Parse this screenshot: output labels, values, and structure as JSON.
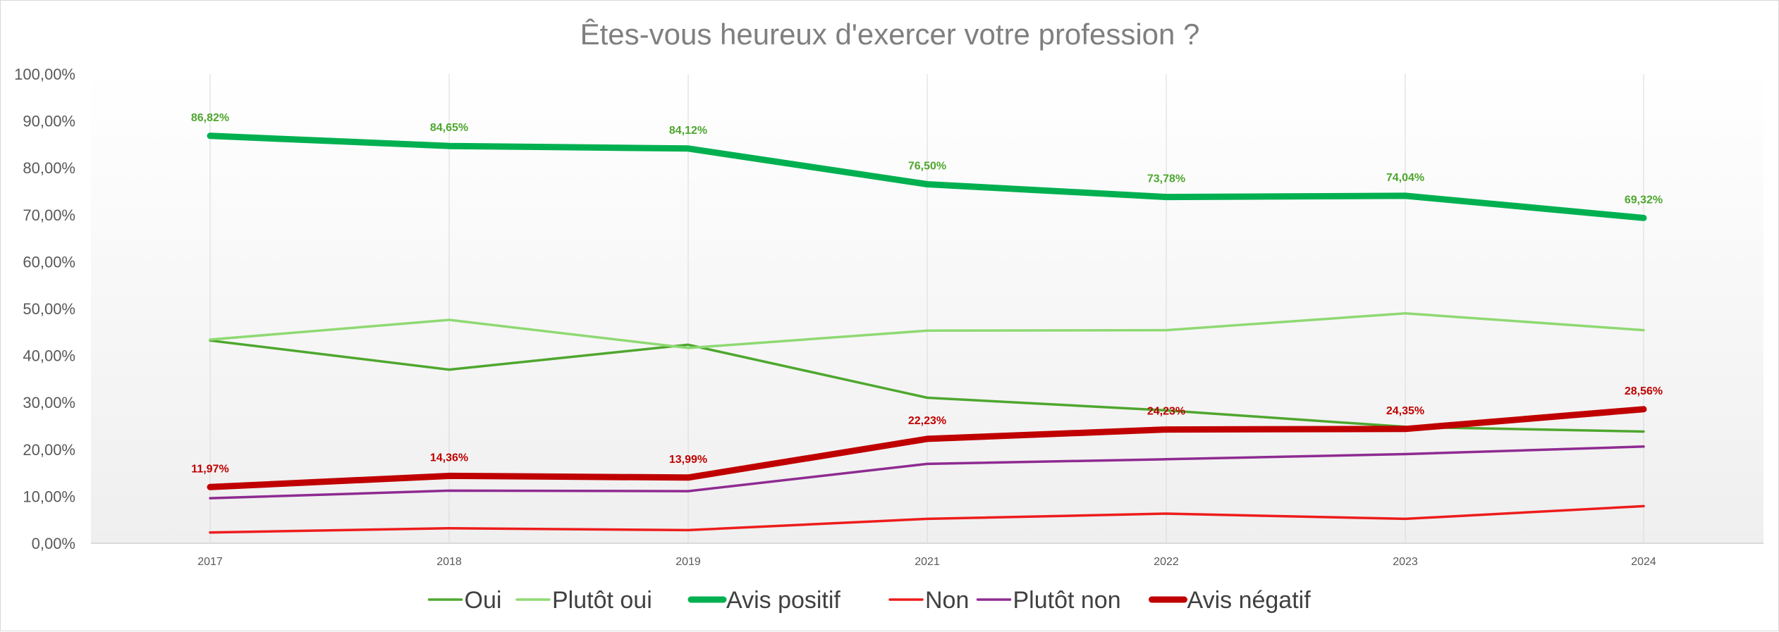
{
  "chart_data": {
    "type": "line",
    "title": "Êtes-vous heureux d'exercer votre profession ?",
    "categories": [
      "2017",
      "2018",
      "2019",
      "2021",
      "2022",
      "2023",
      "2024"
    ],
    "ylim": [
      0,
      100
    ],
    "y_tick_labels": [
      "0,00%",
      "10,00%",
      "20,00%",
      "30,00%",
      "40,00%",
      "50,00%",
      "60,00%",
      "70,00%",
      "80,00%",
      "90,00%",
      "100,00%"
    ],
    "legend_position": "bottom",
    "grid": "vertical",
    "series": [
      {
        "name": "Oui",
        "color": "#4ea72e",
        "weight": "thin",
        "values": [
          43.2,
          37.0,
          42.3,
          31.0,
          28.3,
          24.8,
          23.8
        ]
      },
      {
        "name": "Plutôt oui",
        "color": "#8ed973",
        "weight": "thin",
        "values": [
          43.4,
          47.6,
          41.6,
          45.3,
          45.4,
          49.0,
          45.4
        ]
      },
      {
        "name": "Avis positif",
        "color": "#00b050",
        "weight": "thick",
        "values": [
          86.82,
          84.65,
          84.12,
          76.5,
          73.78,
          74.04,
          69.32
        ],
        "data_labels": [
          "86,82%",
          "84,65%",
          "84,12%",
          "76,50%",
          "73,78%",
          "74,04%",
          "69,32%"
        ]
      },
      {
        "name": "Non",
        "color": "#ee1c1c",
        "weight": "thin",
        "values": [
          2.3,
          3.2,
          2.8,
          5.2,
          6.3,
          5.2,
          7.9
        ]
      },
      {
        "name": "Plutôt non",
        "color": "#8e2b91",
        "weight": "thin",
        "values": [
          9.6,
          11.2,
          11.1,
          16.9,
          17.9,
          19.0,
          20.6
        ]
      },
      {
        "name": "Avis négatif",
        "color": "#c00000",
        "weight": "thick",
        "values": [
          11.97,
          14.36,
          13.99,
          22.23,
          24.23,
          24.35,
          28.56
        ],
        "data_labels": [
          "11,97%",
          "14,36%",
          "13,99%",
          "22,23%",
          "24,23%",
          "24,35%",
          "28,56%"
        ]
      }
    ]
  }
}
